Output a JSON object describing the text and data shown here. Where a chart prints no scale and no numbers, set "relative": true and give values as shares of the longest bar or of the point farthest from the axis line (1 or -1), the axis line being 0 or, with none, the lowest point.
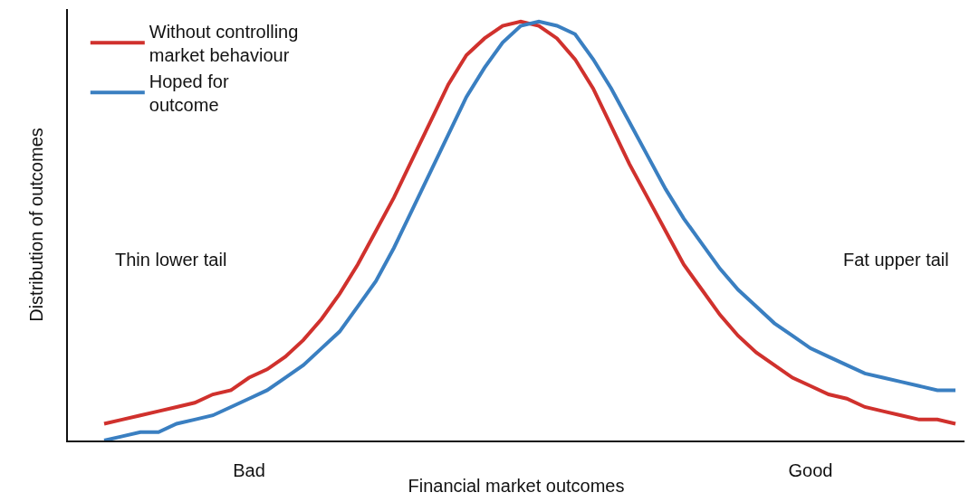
{
  "chart_data": {
    "type": "line",
    "relative": true,
    "xlabel": "Financial market outcomes",
    "ylabel": "Distribution of outcomes",
    "categories": [
      null,
      null,
      null,
      null,
      null,
      null,
      null,
      null,
      "Bad",
      null,
      null,
      null,
      null,
      null,
      null,
      null,
      null,
      null,
      null,
      null,
      null,
      null,
      null,
      null,
      null,
      null,
      null,
      null,
      null,
      null,
      null,
      null,
      null,
      null,
      null,
      null,
      null,
      null,
      null,
      "Good",
      null,
      null,
      null,
      null,
      null,
      null,
      null,
      null
    ],
    "series": [
      {
        "name": "Without controlling market behaviour",
        "color": "#d0312d",
        "values": [
          0.04,
          0.05,
          0.06,
          0.07,
          0.08,
          0.09,
          0.11,
          0.12,
          0.15,
          0.17,
          0.2,
          0.24,
          0.29,
          0.35,
          0.42,
          0.5,
          0.58,
          0.67,
          0.76,
          0.85,
          0.92,
          0.96,
          0.99,
          1,
          0.99,
          0.96,
          0.91,
          0.84,
          0.75,
          0.66,
          0.58,
          0.5,
          0.42,
          0.36,
          0.3,
          0.25,
          0.21,
          0.18,
          0.15,
          0.13,
          0.11,
          0.1,
          0.08,
          0.07,
          0.06,
          0.05,
          0.05,
          0.04
        ]
      },
      {
        "name": "Hoped for outcome",
        "color": "#3a7fc1",
        "values": [
          0,
          0.01,
          0.02,
          0.02,
          0.04,
          0.05,
          0.06,
          0.08,
          0.1,
          0.12,
          0.15,
          0.18,
          0.22,
          0.26,
          0.32,
          0.38,
          0.46,
          0.55,
          0.64,
          0.73,
          0.82,
          0.89,
          0.95,
          0.99,
          1,
          0.99,
          0.97,
          0.91,
          0.84,
          0.76,
          0.68,
          0.6,
          0.53,
          0.47,
          0.41,
          0.36,
          0.32,
          0.28,
          0.25,
          0.22,
          0.2,
          0.18,
          0.16,
          0.15,
          0.14,
          0.13,
          0.12,
          0.12
        ]
      }
    ],
    "annotations": [
      "Thin lower tail",
      "Fat upper tail"
    ],
    "legend": "top left",
    "grid": false,
    "line_style": "solid",
    "marker": "none"
  }
}
